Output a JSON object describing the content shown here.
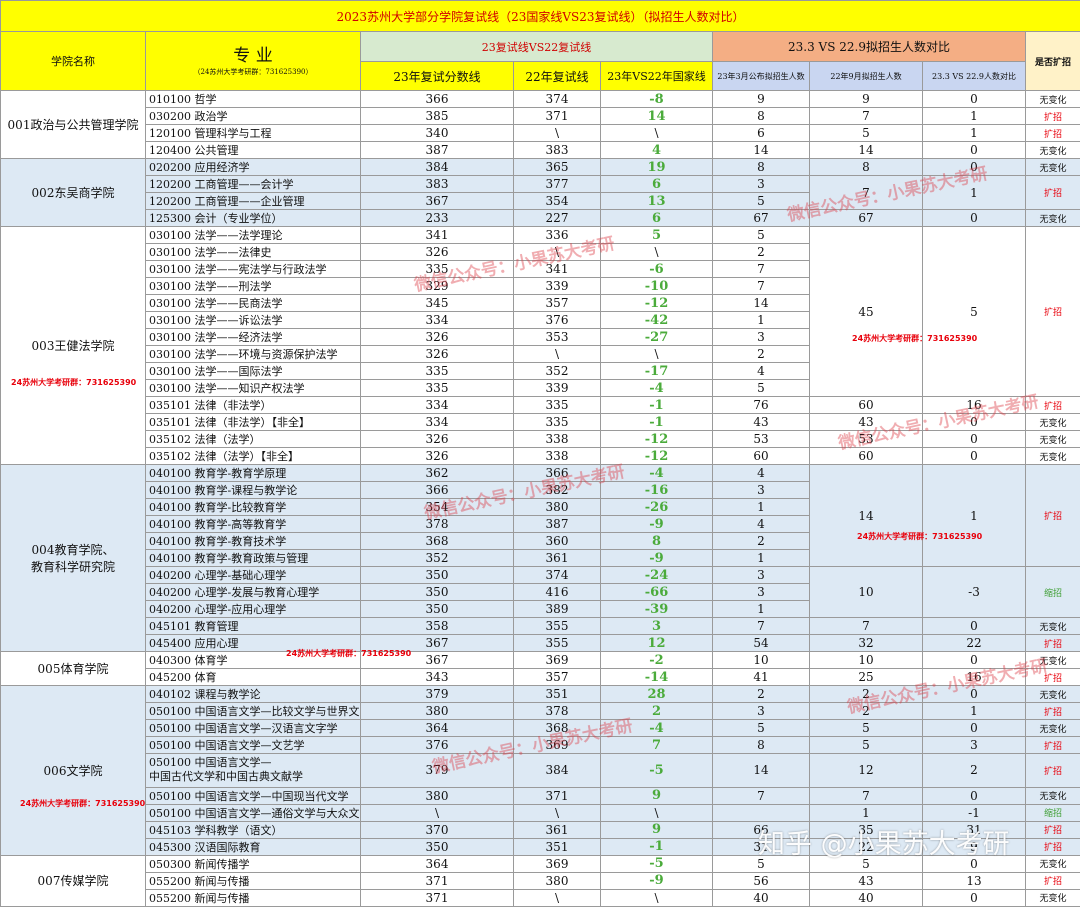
{
  "title": "2023苏州大学部分学院复试线（23国家线VS23复试线）（拟招生人数对比）",
  "headers": {
    "school": "学院名称",
    "major": "专 业",
    "major_sub": "（24苏州大学考研群：731625390）",
    "group1": "23复试线VS22复试线",
    "group2": "23.3 VS 22.9拟招生人数对比",
    "expand": "是否扩招",
    "s23": "23年复试分数线",
    "s22": "22年复试线",
    "diff": "23年VS22年国家线",
    "plan23": "23年3月公布拟招生人数",
    "plan22": "22年9月拟招生人数",
    "plandiff": "23.3 VS 22.9人数对比"
  },
  "schools": [
    {
      "name": "001政治与公共管理学院",
      "rows": [
        {
          "major": "010100 哲学",
          "s23": "366",
          "s22": "374",
          "diff": "-8",
          "p23": "9",
          "p22": "9",
          "pd": "0",
          "ex": "无变化"
        },
        {
          "major": "030200 政治学",
          "s23": "385",
          "s22": "371",
          "diff": "14",
          "p23": "8",
          "p22": "7",
          "pd": "1",
          "ex": "扩招"
        },
        {
          "major": "120100 管理科学与工程",
          "s23": "340",
          "s22": "\\",
          "diff": "\\",
          "p23": "6",
          "p22": "5",
          "pd": "1",
          "ex": "扩招"
        },
        {
          "major": "120400 公共管理",
          "s23": "387",
          "s22": "383",
          "diff": "4",
          "p23": "14",
          "p22": "14",
          "pd": "0",
          "ex": "无变化"
        }
      ]
    },
    {
      "name": "002东吴商学院",
      "rows": [
        {
          "major": "020200 应用经济学",
          "s23": "384",
          "s22": "365",
          "diff": "19",
          "p23": "8",
          "p22": "8",
          "pd": "0",
          "ex": "无变化"
        },
        {
          "major": "120200 工商管理——会计学",
          "s23": "383",
          "s22": "377",
          "diff": "6",
          "p23": "3"
        },
        {
          "major": "120200 工商管理——企业管理",
          "s23": "367",
          "s22": "354",
          "diff": "13",
          "p23": "5"
        },
        {
          "major": "125300 会计（专业学位）",
          "s23": "233",
          "s22": "227",
          "diff": "6",
          "p23": "67",
          "p22": "67",
          "pd": "0",
          "ex": "无变化"
        }
      ],
      "merged": {
        "p22": "7",
        "pd": "1",
        "ex": "扩招"
      }
    },
    {
      "name": "003王健法学院",
      "rows": [
        {
          "major": "030100 法学——法学理论",
          "s23": "341",
          "s22": "336",
          "diff": "5",
          "p23": "5"
        },
        {
          "major": "030100 法学——法律史",
          "s23": "326",
          "s22": "\\",
          "diff": "\\",
          "p23": "2"
        },
        {
          "major": "030100 法学——宪法学与行政法学",
          "s23": "335",
          "s22": "341",
          "diff": "-6",
          "p23": "7"
        },
        {
          "major": "030100 法学——刑法学",
          "s23": "329",
          "s22": "339",
          "diff": "-10",
          "p23": "7"
        },
        {
          "major": "030100 法学——民商法学",
          "s23": "345",
          "s22": "357",
          "diff": "-12",
          "p23": "14"
        },
        {
          "major": "030100 法学——诉讼法学",
          "s23": "334",
          "s22": "376",
          "diff": "-42",
          "p23": "1"
        },
        {
          "major": "030100 法学——经济法学",
          "s23": "326",
          "s22": "353",
          "diff": "-27",
          "p23": "3"
        },
        {
          "major": "030100 法学——环境与资源保护法学",
          "s23": "326",
          "s22": "\\",
          "diff": "\\",
          "p23": "2"
        },
        {
          "major": "030100 法学——国际法学",
          "s23": "335",
          "s22": "352",
          "diff": "-17",
          "p23": "4"
        },
        {
          "major": "030100 法学——知识产权法学",
          "s23": "335",
          "s22": "339",
          "diff": "-4",
          "p23": "5"
        },
        {
          "major": "035101 法律（非法学）",
          "s23": "334",
          "s22": "335",
          "diff": "-1",
          "p23": "76",
          "p22": "60",
          "pd": "16",
          "ex": "扩招"
        },
        {
          "major": "035101 法律（非法学）【非全】",
          "s23": "334",
          "s22": "335",
          "diff": "-1",
          "p23": "43",
          "p22": "43",
          "pd": "0",
          "ex": "无变化"
        },
        {
          "major": "035102 法律（法学）",
          "s23": "326",
          "s22": "338",
          "diff": "-12",
          "p23": "53",
          "p22": "53",
          "pd": "0",
          "ex": "无变化"
        },
        {
          "major": "035102 法律（法学）【非全】",
          "s23": "326",
          "s22": "338",
          "diff": "-12",
          "p23": "60",
          "p22": "60",
          "pd": "0",
          "ex": "无变化"
        }
      ],
      "merged": {
        "p22": "45",
        "pd": "5",
        "ex": "扩招"
      }
    },
    {
      "name": "004教育学院、教育科学研究院",
      "name1": "004教育学院、",
      "name2": "教育科学研究院",
      "rows": [
        {
          "major": "040100 教育学-教育学原理",
          "s23": "362",
          "s22": "366",
          "diff": "-4",
          "p23": "4"
        },
        {
          "major": "040100 教育学-课程与教学论",
          "s23": "366",
          "s22": "382",
          "diff": "-16",
          "p23": "3"
        },
        {
          "major": "040100 教育学-比较教育学",
          "s23": "354",
          "s22": "380",
          "diff": "-26",
          "p23": "1"
        },
        {
          "major": "040100 教育学-高等教育学",
          "s23": "378",
          "s22": "387",
          "diff": "-9",
          "p23": "4"
        },
        {
          "major": "040100 教育学-教育技术学",
          "s23": "368",
          "s22": "360",
          "diff": "8",
          "p23": "2"
        },
        {
          "major": "040100 教育学-教育政策与管理",
          "s23": "352",
          "s22": "361",
          "diff": "-9",
          "p23": "1"
        },
        {
          "major": "040200 心理学-基础心理学",
          "s23": "350",
          "s22": "374",
          "diff": "-24",
          "p23": "3"
        },
        {
          "major": "040200 心理学-发展与教育心理学",
          "s23": "350",
          "s22": "416",
          "diff": "-66",
          "p23": "3"
        },
        {
          "major": "040200 心理学-应用心理学",
          "s23": "350",
          "s22": "389",
          "diff": "-39",
          "p23": "1"
        },
        {
          "major": "045101 教育管理",
          "s23": "358",
          "s22": "355",
          "diff": "3",
          "p23": "7",
          "p22": "7",
          "pd": "0",
          "ex": "无变化"
        },
        {
          "major": "045400 应用心理",
          "s23": "367",
          "s22": "355",
          "diff": "12",
          "p23": "54",
          "p22": "32",
          "pd": "22",
          "ex": "扩招"
        }
      ],
      "merged_a": {
        "p22": "14",
        "pd": "1",
        "ex": "扩招"
      },
      "merged_b": {
        "p22": "10",
        "pd": "-3",
        "ex": "缩招"
      }
    },
    {
      "name": "005体育学院",
      "rows": [
        {
          "major": "040300 体育学",
          "s23": "367",
          "s22": "369",
          "diff": "-2",
          "p23": "10",
          "p22": "10",
          "pd": "0",
          "ex": "无变化"
        },
        {
          "major": "045200 体育",
          "s23": "343",
          "s22": "357",
          "diff": "-14",
          "p23": "41",
          "p22": "25",
          "pd": "16",
          "ex": "扩招"
        }
      ]
    },
    {
      "name": "006文学院",
      "rows": [
        {
          "major": "040102 课程与教学论",
          "s23": "379",
          "s22": "351",
          "diff": "28",
          "p23": "2",
          "p22": "2",
          "pd": "0",
          "ex": "无变化"
        },
        {
          "major": "050100 中国语言文学—比较文学与世界文学",
          "s23": "380",
          "s22": "378",
          "diff": "2",
          "p23": "3",
          "p22": "2",
          "pd": "1",
          "ex": "扩招"
        },
        {
          "major": "050100 中国语言文学—汉语言文字学",
          "s23": "364",
          "s22": "368",
          "diff": "-4",
          "p23": "5",
          "p22": "5",
          "pd": "0",
          "ex": "无变化"
        },
        {
          "major": "050100 中国语言文学—文艺学",
          "s23": "376",
          "s22": "369",
          "diff": "7",
          "p23": "8",
          "p22": "5",
          "pd": "3",
          "ex": "扩招"
        },
        {
          "major": "050100 中国语言文学—中国古代文学和中国古典文献学",
          "major1": "050100 中国语言文学—",
          "major2": "中国古代文学和中国古典文献学",
          "s23": "379",
          "s22": "384",
          "diff": "-5",
          "p23": "14",
          "p22": "12",
          "pd": "2",
          "ex": "扩招"
        },
        {
          "major": "050100 中国语言文学—中国现当代文学",
          "s23": "380",
          "s22": "371",
          "diff": "9",
          "p23": "7",
          "p22": "7",
          "pd": "0",
          "ex": "无变化"
        },
        {
          "major": "050100 中国语言文学—通俗文学与大众文化",
          "s23": "\\",
          "s22": "\\",
          "diff": "\\",
          "p23": "",
          "p22": "1",
          "pd": "-1",
          "ex": "缩招"
        },
        {
          "major": "045103 学科教学（语文）",
          "s23": "370",
          "s22": "361",
          "diff": "9",
          "p23": "66",
          "p22": "35",
          "pd": "31",
          "ex": "扩招"
        },
        {
          "major": "045300 汉语国际教育",
          "s23": "350",
          "s22": "351",
          "diff": "-1",
          "p23": "31",
          "p22": "22",
          "pd": "9",
          "ex": "扩招"
        }
      ]
    },
    {
      "name": "007传媒学院",
      "rows": [
        {
          "major": "050300 新闻传播学",
          "s23": "364",
          "s22": "369",
          "diff": "-5",
          "p23": "5",
          "p22": "5",
          "pd": "0",
          "ex": "无变化"
        },
        {
          "major": "055200 新闻与传播",
          "s23": "371",
          "s22": "380",
          "diff": "-9",
          "p23": "56",
          "p22": "43",
          "pd": "13",
          "ex": "扩招"
        },
        {
          "major": "055200 新闻与传播",
          "s23": "371",
          "s22": "\\",
          "diff": "\\",
          "p23": "40",
          "p22": "40",
          "pd": "0",
          "ex": "无变化"
        }
      ]
    }
  ],
  "watermarks": {
    "wechat": "微信公众号：小果苏大考研",
    "qq": "24苏州大学考研群：731625390",
    "zhihu": "知乎 @小果苏大考研"
  }
}
